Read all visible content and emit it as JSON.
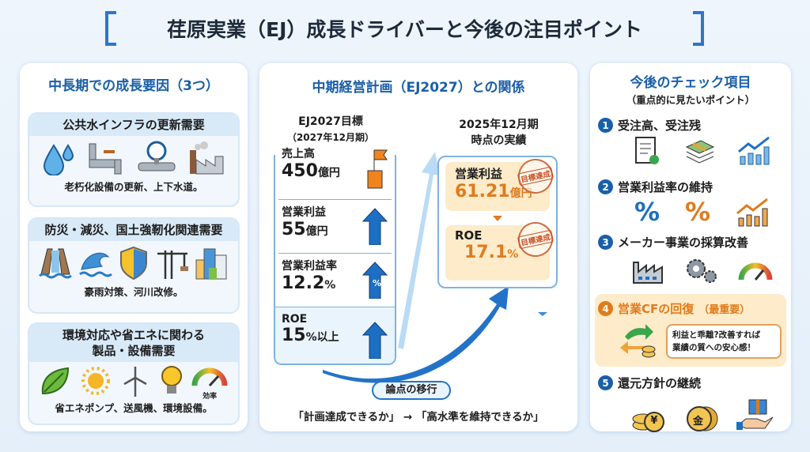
{
  "title": "荏原実業（EJ）成長ドライバーと今後の注目ポイント",
  "left": {
    "title": "中長期での成長要因（3つ）",
    "cards": [
      {
        "header": "公共水インフラの更新需要",
        "footer": "老朽化設備の更新、上下水道。"
      },
      {
        "header": "防災・減災、国土強靭化関連需要",
        "footer": "豪雨対策、河川改修。"
      },
      {
        "header_line1": "環境対応や省エネに関わる",
        "header_line2": "製品・設備需要",
        "footer": "省エネポンプ、送風機、環境設備。",
        "gauge_label": "効率"
      }
    ]
  },
  "middle": {
    "title": "中期経営計画（EJ2027）との関係",
    "target_heading": "EJ2027目標",
    "target_sub": "（2027年12月期）",
    "targets": [
      {
        "label": "売上高",
        "value": "450",
        "unit": "億円"
      },
      {
        "label": "営業利益",
        "value": "55",
        "unit": "億円"
      },
      {
        "label": "営業利益率",
        "value": "12.2",
        "unit": "%"
      },
      {
        "label": "ROE",
        "value": "15",
        "unit": "%以上"
      }
    ],
    "arrow_percent": "%",
    "actual_heading": "2025年12月期",
    "actual_sub": "時点の実績",
    "actuals": [
      {
        "label": "営業利益",
        "value": "61.21",
        "unit": "億円",
        "stamp": "目標達成"
      },
      {
        "label": "ROE",
        "value": "17.1",
        "unit": "%",
        "stamp": "目標達成"
      }
    ],
    "shift_label": "論点の移行",
    "from": "「計画達成できるか」",
    "arrow": "→",
    "to": "「高水準を維持できるか」"
  },
  "right": {
    "title": "今後のチェック項目",
    "subtitle": "（重点的に見たいポイント）",
    "items": [
      {
        "num": "1",
        "label": "受注高、受注残"
      },
      {
        "num": "2",
        "label": "営業利益率の維持"
      },
      {
        "num": "3",
        "label": "メーカー事業の採算改善"
      },
      {
        "num": "4",
        "label": "営業CFの回復",
        "note": "（最重要）",
        "bubble_line1": "利益と乖離?改善すれば",
        "bubble_line2": "業績の質への安心感！"
      },
      {
        "num": "5",
        "label": "還元方針の継続"
      }
    ],
    "coin_yen": "¥",
    "coin_kin": "金"
  },
  "colors": {
    "accent": "#1a5fa8",
    "orange": "#e07b1c",
    "highlight": "#fdebc9"
  }
}
